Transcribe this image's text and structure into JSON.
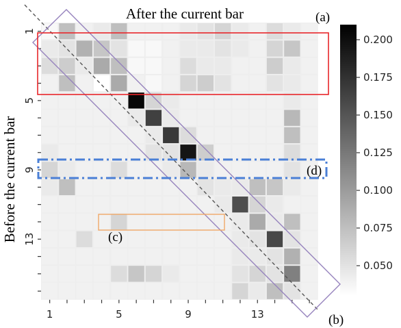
{
  "chart_data": {
    "type": "heatmap",
    "title": "After the current bar",
    "ylabel": "Before  the current bar",
    "x_tick_labels": [
      "1",
      "5",
      "9",
      "13"
    ],
    "x_tick_positions": [
      1,
      5,
      9,
      13
    ],
    "y_tick_labels": [
      "1",
      "5",
      "9",
      "13"
    ],
    "y_tick_positions": [
      1,
      5,
      9,
      13
    ],
    "n_rows": 16,
    "n_cols": 16,
    "values": [
      [
        0.035,
        0.075,
        0.04,
        0.045,
        0.075,
        0.04,
        0.04,
        0.04,
        0.045,
        0.05,
        0.06,
        0.045,
        0.04,
        0.055,
        0.045,
        0.04
      ],
      [
        0.045,
        0.05,
        0.085,
        0.07,
        0.05,
        0.035,
        0.035,
        0.04,
        0.045,
        0.045,
        0.05,
        0.045,
        0.04,
        0.06,
        0.07,
        0.04
      ],
      [
        0.055,
        0.065,
        0.045,
        0.09,
        0.075,
        0.035,
        0.035,
        0.04,
        0.055,
        0.045,
        0.045,
        0.04,
        0.04,
        0.065,
        0.045,
        0.04
      ],
      [
        0.04,
        0.075,
        0.04,
        0.03,
        0.09,
        0.04,
        0.035,
        0.04,
        0.06,
        0.065,
        0.05,
        0.04,
        0.04,
        0.05,
        0.045,
        0.04
      ],
      [
        0.04,
        0.04,
        0.04,
        0.04,
        0.04,
        0.205,
        0.06,
        0.045,
        0.04,
        0.04,
        0.04,
        0.04,
        0.04,
        0.04,
        0.045,
        0.04
      ],
      [
        0.04,
        0.04,
        0.04,
        0.04,
        0.04,
        0.045,
        0.165,
        0.045,
        0.04,
        0.04,
        0.04,
        0.04,
        0.04,
        0.04,
        0.08,
        0.04
      ],
      [
        0.04,
        0.04,
        0.04,
        0.04,
        0.04,
        0.04,
        0.045,
        0.17,
        0.055,
        0.04,
        0.04,
        0.04,
        0.04,
        0.04,
        0.075,
        0.04
      ],
      [
        0.045,
        0.04,
        0.04,
        0.04,
        0.04,
        0.04,
        0.05,
        0.05,
        0.195,
        0.065,
        0.04,
        0.04,
        0.04,
        0.04,
        0.055,
        0.04
      ],
      [
        0.06,
        0.045,
        0.04,
        0.04,
        0.055,
        0.04,
        0.04,
        0.045,
        0.08,
        0.045,
        0.04,
        0.04,
        0.04,
        0.04,
        0.05,
        0.04
      ],
      [
        0.045,
        0.075,
        0.04,
        0.04,
        0.04,
        0.04,
        0.04,
        0.04,
        0.04,
        0.05,
        0.045,
        0.045,
        0.075,
        0.07,
        0.045,
        0.04
      ],
      [
        0.04,
        0.04,
        0.04,
        0.04,
        0.04,
        0.04,
        0.04,
        0.04,
        0.04,
        0.04,
        0.045,
        0.155,
        0.06,
        0.045,
        0.04,
        0.04
      ],
      [
        0.04,
        0.04,
        0.04,
        0.04,
        0.06,
        0.04,
        0.04,
        0.04,
        0.04,
        0.04,
        0.04,
        0.045,
        0.09,
        0.045,
        0.075,
        0.04
      ],
      [
        0.04,
        0.04,
        0.055,
        0.04,
        0.04,
        0.04,
        0.04,
        0.04,
        0.04,
        0.04,
        0.04,
        0.045,
        0.05,
        0.16,
        0.05,
        0.04
      ],
      [
        0.04,
        0.04,
        0.04,
        0.04,
        0.04,
        0.04,
        0.04,
        0.04,
        0.04,
        0.04,
        0.04,
        0.045,
        0.045,
        0.05,
        0.085,
        0.04
      ],
      [
        0.04,
        0.04,
        0.04,
        0.04,
        0.055,
        0.07,
        0.06,
        0.045,
        0.04,
        0.04,
        0.04,
        0.05,
        0.06,
        0.05,
        0.12,
        0.04
      ],
      [
        0.04,
        0.04,
        0.04,
        0.04,
        0.04,
        0.04,
        0.04,
        0.04,
        0.04,
        0.04,
        0.04,
        0.06,
        0.045,
        0.075,
        0.05,
        0.04
      ]
    ],
    "colorbar": {
      "min": 0.03,
      "max": 0.21,
      "ticks": [
        "0.050",
        "0.075",
        "0.100",
        "0.125",
        "0.150",
        "0.175",
        "0.200"
      ],
      "tick_values": [
        0.05,
        0.075,
        0.1,
        0.125,
        0.15,
        0.175,
        0.2
      ],
      "colormap": "gray_r"
    },
    "annotations": [
      {
        "label": "(a)",
        "color": "#e8262a",
        "style": "solid"
      },
      {
        "label": "(b)",
        "color": "#9683bd",
        "style": "solid"
      },
      {
        "label": "(c)",
        "color": "#f0a868",
        "style": "solid"
      },
      {
        "label": "(d)",
        "color": "#4a7fd6",
        "style": "dashdot"
      }
    ],
    "grid": true,
    "diagonal_reference_line": true
  }
}
